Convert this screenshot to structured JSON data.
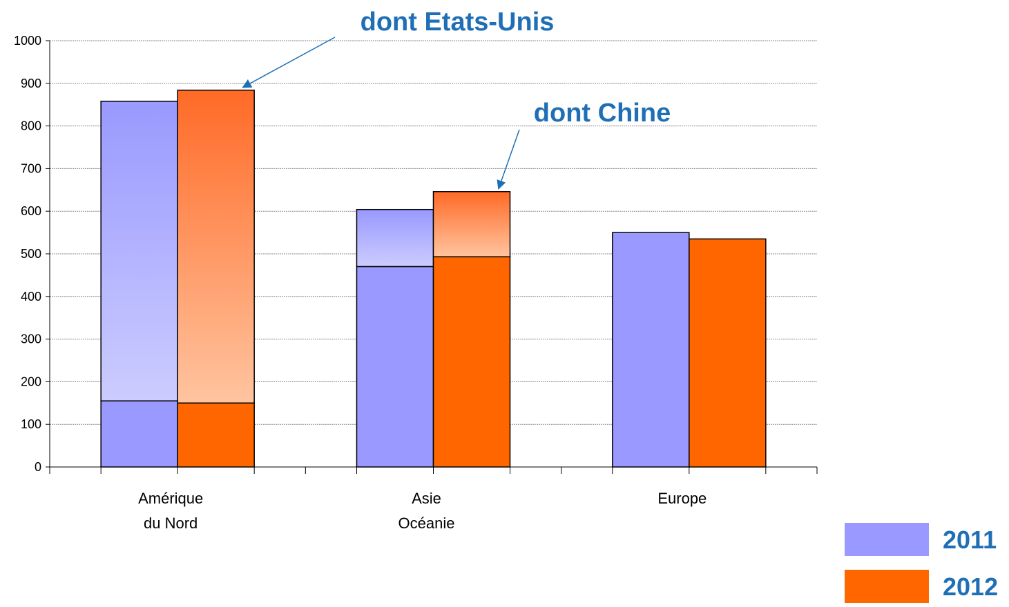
{
  "chart_data": {
    "type": "bar",
    "categories": [
      [
        "Amérique",
        "du Nord"
      ],
      [
        "Asie",
        "Océanie"
      ],
      [
        "Europe"
      ]
    ],
    "series": [
      {
        "name": "2011",
        "color": "#9999FF",
        "values": [
          858,
          604,
          550
        ],
        "highlight_values": [
          155,
          470,
          null
        ]
      },
      {
        "name": "2012",
        "color": "#FF6600",
        "values": [
          884,
          646,
          535
        ],
        "highlight_values": [
          150,
          493,
          null
        ]
      }
    ],
    "ylim": [
      0,
      1000
    ],
    "yticks": [
      "0",
      "100",
      "200",
      "300",
      "400",
      "500",
      "600",
      "700",
      "800",
      "900",
      "1000"
    ],
    "grid": true,
    "legend_position": "bottom-right",
    "annotations": [
      {
        "text": "dont Etats-Unis",
        "category_index": 0,
        "series_index": 1
      },
      {
        "text": "dont Chine",
        "category_index": 1,
        "series_index": 1
      }
    ],
    "annotation_color": "#1F6FB6"
  }
}
